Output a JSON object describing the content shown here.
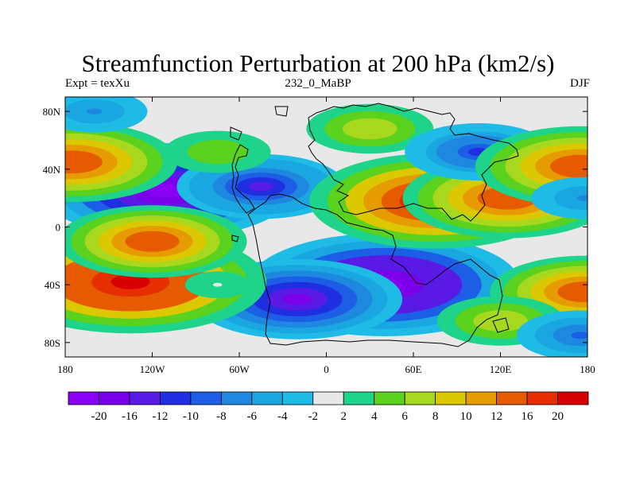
{
  "title": "Streamfunction Perturbation at 200 hPa (km2/s)",
  "left_label": "Expt = texXu",
  "center_label": "232_0_MaBP",
  "right_label": "DJF",
  "chart_data": {
    "type": "heatmap",
    "title": "Streamfunction Perturbation at 200 hPa (km2/s)",
    "xlabel": "",
    "ylabel": "",
    "xlim": [
      -180,
      180
    ],
    "ylim": [
      -90,
      90
    ],
    "x_ticks": [
      {
        "value": -180,
        "label": "180"
      },
      {
        "value": -120,
        "label": "120W"
      },
      {
        "value": -60,
        "label": "60W"
      },
      {
        "value": 0,
        "label": "0"
      },
      {
        "value": 60,
        "label": "60E"
      },
      {
        "value": 120,
        "label": "120E"
      },
      {
        "value": 180,
        "label": "180"
      }
    ],
    "y_ticks": [
      {
        "value": 80,
        "label": "80N"
      },
      {
        "value": 40,
        "label": "40N"
      },
      {
        "value": 0,
        "label": "0"
      },
      {
        "value": -40,
        "label": "40S"
      },
      {
        "value": -80,
        "label": "80S"
      }
    ],
    "colorbar_levels": [
      "-20",
      "-16",
      "-12",
      "-10",
      "-8",
      "-6",
      "-4",
      "-2",
      "2",
      "4",
      "6",
      "8",
      "10",
      "12",
      "16",
      "20"
    ],
    "colorbar_colors": [
      "#8a00f5",
      "#7a00ea",
      "#5a1ae6",
      "#1f2ee0",
      "#1c5fe6",
      "#1e88e0",
      "#1aa6e0",
      "#1dbbe6",
      "#e8e8e8",
      "#1ed38a",
      "#5ad21e",
      "#a8d81e",
      "#dcc800",
      "#e69b00",
      "#e65a00",
      "#e62e00",
      "#d80000"
    ],
    "field_lobes": [
      {
        "lon": -110,
        "lat": 25,
        "value": -20
      },
      {
        "lon": -45,
        "lat": 28,
        "value": -12
      },
      {
        "lon": 40,
        "lat": -40,
        "value": -22
      },
      {
        "lon": -20,
        "lat": -50,
        "value": -16
      },
      {
        "lon": 75,
        "lat": 18,
        "value": 20
      },
      {
        "lon": 125,
        "lat": 20,
        "value": 16
      },
      {
        "lon": -135,
        "lat": -38,
        "value": 22
      },
      {
        "lon": -120,
        "lat": -10,
        "value": 14
      },
      {
        "lon": 30,
        "lat": 68,
        "value": 8
      },
      {
        "lon": -75,
        "lat": 52,
        "value": 6
      },
      {
        "lon": 105,
        "lat": 52,
        "value": -10
      },
      {
        "lon": -175,
        "lat": 45,
        "value": 16
      },
      {
        "lon": 175,
        "lat": 42,
        "value": 16
      },
      {
        "lon": 178,
        "lat": -45,
        "value": 14
      },
      {
        "lon": 120,
        "lat": -65,
        "value": 8
      },
      {
        "lon": -75,
        "lat": -40,
        "value": 2
      },
      {
        "lon": -160,
        "lat": 80,
        "value": -6
      },
      {
        "lon": 175,
        "lat": -75,
        "value": -8
      },
      {
        "lon": 178,
        "lat": 20,
        "value": -6
      }
    ]
  }
}
